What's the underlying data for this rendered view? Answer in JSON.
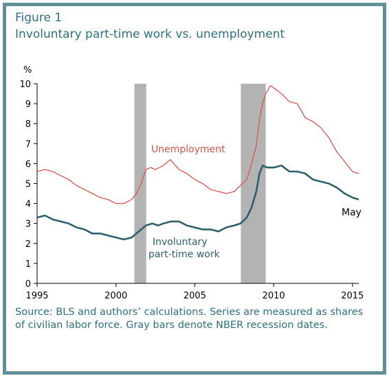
{
  "figure_label": "Figure 1",
  "title": "Involuntary part-time work vs. unemployment",
  "source_note": "Source: BLS and authors’ calculations. Series are measured as shares of civilian labor force. Gray bars denote NBER recession dates.",
  "colors": {
    "frame": "#5e8f9b",
    "title": "#2e6f80",
    "unemployment": "#d9534f",
    "involuntary": "#2d5f6b",
    "recession": "#b3b3b3"
  },
  "chart_data": {
    "type": "line",
    "title": "Involuntary part-time work vs. unemployment",
    "ylabel": "%",
    "xlabel": "",
    "xlim": [
      1995,
      2015.4
    ],
    "ylim": [
      0,
      10
    ],
    "x_ticks": [
      1995,
      2000,
      2005,
      2010,
      2015
    ],
    "y_ticks": [
      0,
      1,
      2,
      3,
      4,
      5,
      6,
      7,
      8,
      9,
      10
    ],
    "grid": false,
    "recessions": [
      [
        2001.17,
        2001.92
      ],
      [
        2007.92,
        2009.5
      ]
    ],
    "series": [
      {
        "name": "Unemployment",
        "x": [
          1995.0,
          1995.5,
          1996.0,
          1996.5,
          1997.0,
          1997.5,
          1998.0,
          1998.5,
          1999.0,
          1999.5,
          2000.0,
          2000.5,
          2001.0,
          2001.3,
          2001.6,
          2001.9,
          2002.2,
          2002.5,
          2003.0,
          2003.45,
          2004.0,
          2004.5,
          2005.0,
          2005.5,
          2006.0,
          2006.5,
          2007.0,
          2007.5,
          2007.9,
          2008.3,
          2008.6,
          2008.9,
          2009.1,
          2009.3,
          2009.5,
          2009.8,
          2010.0,
          2010.5,
          2011.0,
          2011.5,
          2012.0,
          2012.5,
          2013.0,
          2013.5,
          2014.0,
          2014.5,
          2015.0,
          2015.4
        ],
        "values": [
          5.6,
          5.7,
          5.6,
          5.4,
          5.2,
          4.9,
          4.7,
          4.5,
          4.3,
          4.2,
          4.0,
          4.0,
          4.2,
          4.5,
          5.0,
          5.7,
          5.8,
          5.7,
          5.9,
          6.2,
          5.7,
          5.5,
          5.2,
          5.0,
          4.7,
          4.6,
          4.5,
          4.6,
          4.9,
          5.2,
          6.0,
          6.9,
          8.2,
          9.0,
          9.5,
          9.9,
          9.8,
          9.5,
          9.1,
          9.0,
          8.3,
          8.1,
          7.8,
          7.3,
          6.6,
          6.1,
          5.6,
          5.5
        ]
      },
      {
        "name": "Involuntary part-time work",
        "x": [
          1995.0,
          1995.5,
          1996.0,
          1996.5,
          1997.0,
          1997.5,
          1998.0,
          1998.5,
          1999.0,
          1999.5,
          2000.0,
          2000.5,
          2001.0,
          2001.3,
          2001.6,
          2001.9,
          2002.3,
          2002.7,
          2003.0,
          2003.5,
          2004.0,
          2004.5,
          2005.0,
          2005.5,
          2006.0,
          2006.5,
          2007.0,
          2007.5,
          2007.9,
          2008.3,
          2008.6,
          2008.9,
          2009.1,
          2009.3,
          2009.6,
          2010.0,
          2010.5,
          2011.0,
          2011.5,
          2012.0,
          2012.5,
          2013.0,
          2013.5,
          2014.0,
          2014.5,
          2015.0,
          2015.4
        ],
        "values": [
          3.3,
          3.4,
          3.2,
          3.1,
          3.0,
          2.8,
          2.7,
          2.5,
          2.5,
          2.4,
          2.3,
          2.2,
          2.3,
          2.5,
          2.7,
          2.9,
          3.0,
          2.9,
          3.0,
          3.1,
          3.1,
          2.9,
          2.8,
          2.7,
          2.7,
          2.6,
          2.8,
          2.9,
          3.0,
          3.3,
          3.8,
          4.6,
          5.5,
          5.9,
          5.8,
          5.8,
          5.9,
          5.6,
          5.6,
          5.5,
          5.2,
          5.1,
          5.0,
          4.8,
          4.5,
          4.3,
          4.2
        ]
      }
    ],
    "annotations": {
      "unemployment_label": "Unemployment",
      "involuntary_label_line1": "Involuntary",
      "involuntary_label_line2": "part-time work",
      "end_label": "May"
    }
  }
}
